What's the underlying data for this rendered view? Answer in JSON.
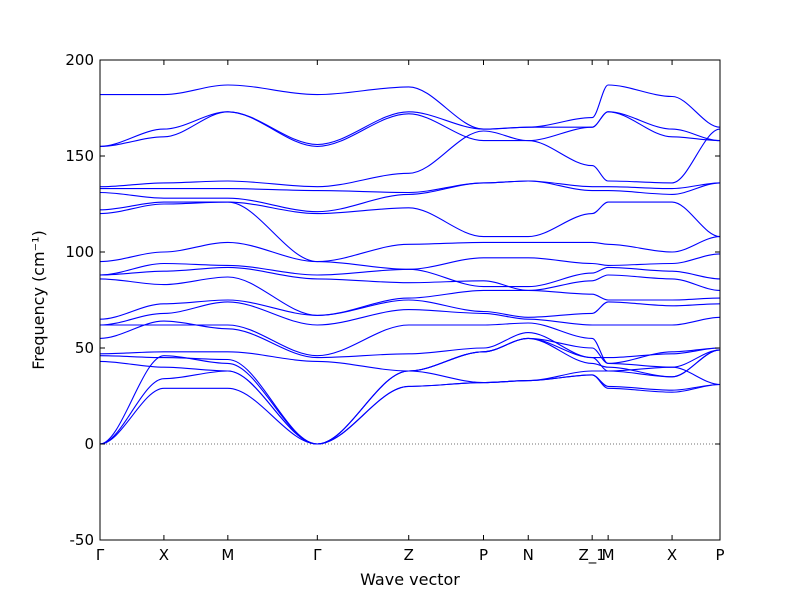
{
  "chart_data": {
    "type": "line",
    "xlabel": "Wave vector",
    "ylabel": "Frequency (cm⁻¹)",
    "ylim": [
      -50,
      200
    ],
    "yticks": [
      -50,
      0,
      50,
      100,
      150,
      200
    ],
    "colors": {
      "bands": "#0000ff",
      "zero_line": "#444444"
    },
    "zero_line": {
      "y": 0,
      "style": "dotted"
    },
    "path_points": [
      {
        "label": "Γ",
        "x": 0.0
      },
      {
        "label": "X",
        "x": 1.0
      },
      {
        "label": "M",
        "x": 2.0
      },
      {
        "label": "Γ",
        "x": 3.4
      },
      {
        "label": "Z",
        "x": 4.83
      },
      {
        "label": "P",
        "x": 6.0
      },
      {
        "label": "N",
        "x": 6.7
      },
      {
        "label": "Z_1",
        "x": 7.7
      },
      {
        "label": "M",
        "x": 7.95
      },
      {
        "label": "X",
        "x": 8.95
      },
      {
        "label": "P",
        "x": 9.7
      }
    ],
    "series": [
      {
        "values": [
          [
            0,
            182
          ],
          [
            1,
            182
          ],
          [
            2,
            187
          ],
          [
            3.4,
            182
          ],
          [
            4.83,
            186
          ],
          [
            6,
            164
          ],
          [
            6.7,
            165
          ],
          [
            7.7,
            170
          ],
          [
            7.95,
            187
          ],
          [
            8.95,
            181
          ],
          [
            9.7,
            165
          ]
        ]
      },
      {
        "values": [
          [
            0,
            155
          ],
          [
            1,
            164
          ],
          [
            2,
            173
          ],
          [
            3.4,
            156
          ],
          [
            4.83,
            173
          ],
          [
            6,
            164
          ],
          [
            6.7,
            165
          ],
          [
            7.7,
            165
          ],
          [
            7.95,
            173
          ],
          [
            8.95,
            164
          ],
          [
            9.7,
            158
          ]
        ]
      },
      {
        "values": [
          [
            0,
            155
          ],
          [
            1,
            160
          ],
          [
            2,
            173
          ],
          [
            3.4,
            155
          ],
          [
            4.83,
            172
          ],
          [
            6,
            158
          ],
          [
            6.7,
            158
          ],
          [
            7.7,
            165
          ],
          [
            7.95,
            173
          ],
          [
            8.95,
            160
          ],
          [
            9.7,
            158
          ]
        ]
      },
      {
        "values": [
          [
            0,
            134
          ],
          [
            1,
            136
          ],
          [
            2,
            137
          ],
          [
            3.4,
            134
          ],
          [
            4.83,
            141
          ],
          [
            6,
            163
          ],
          [
            6.7,
            158
          ],
          [
            7.7,
            145
          ],
          [
            7.95,
            137
          ],
          [
            8.95,
            136
          ],
          [
            9.7,
            164
          ]
        ]
      },
      {
        "values": [
          [
            0,
            133
          ],
          [
            1,
            133
          ],
          [
            2,
            133
          ],
          [
            3.4,
            132
          ],
          [
            4.83,
            131
          ],
          [
            6,
            136
          ],
          [
            6.7,
            137
          ],
          [
            7.7,
            134
          ],
          [
            7.95,
            134
          ],
          [
            8.95,
            133
          ],
          [
            9.7,
            136
          ]
        ]
      },
      {
        "values": [
          [
            0,
            131
          ],
          [
            1,
            128
          ],
          [
            2,
            128
          ],
          [
            3.4,
            121
          ],
          [
            4.83,
            130
          ],
          [
            6,
            136
          ],
          [
            6.7,
            137
          ],
          [
            7.7,
            132
          ],
          [
            7.95,
            132
          ],
          [
            8.95,
            130
          ],
          [
            9.7,
            136
          ]
        ]
      },
      {
        "values": [
          [
            0,
            122
          ],
          [
            1,
            126
          ],
          [
            2,
            126
          ],
          [
            3.4,
            120
          ],
          [
            4.83,
            123
          ],
          [
            6,
            108
          ],
          [
            6.7,
            108
          ],
          [
            7.7,
            120
          ],
          [
            7.95,
            126
          ],
          [
            8.95,
            126
          ],
          [
            9.7,
            108
          ]
        ]
      },
      {
        "values": [
          [
            0,
            120
          ],
          [
            1,
            125
          ],
          [
            2,
            126
          ],
          [
            3.4,
            95
          ],
          [
            4.83,
            104
          ],
          [
            6,
            105
          ],
          [
            6.7,
            105
          ],
          [
            7.7,
            105
          ],
          [
            7.95,
            104
          ],
          [
            8.95,
            100
          ],
          [
            9.7,
            108
          ]
        ]
      },
      {
        "values": [
          [
            0,
            95
          ],
          [
            1,
            100
          ],
          [
            2,
            105
          ],
          [
            3.4,
            95
          ],
          [
            4.83,
            91
          ],
          [
            6,
            97
          ],
          [
            6.7,
            97
          ],
          [
            7.7,
            94
          ],
          [
            7.95,
            93
          ],
          [
            8.95,
            94
          ],
          [
            9.7,
            99
          ]
        ]
      },
      {
        "values": [
          [
            0,
            88
          ],
          [
            1,
            94
          ],
          [
            2,
            93
          ],
          [
            3.4,
            88
          ],
          [
            4.83,
            91
          ],
          [
            6,
            82
          ],
          [
            6.7,
            82
          ],
          [
            7.7,
            89
          ],
          [
            7.95,
            92
          ],
          [
            8.95,
            90
          ],
          [
            9.7,
            86
          ]
        ]
      },
      {
        "values": [
          [
            0,
            88
          ],
          [
            1,
            90
          ],
          [
            2,
            92
          ],
          [
            3.4,
            86
          ],
          [
            4.83,
            84
          ],
          [
            6,
            85
          ],
          [
            6.7,
            80
          ],
          [
            7.7,
            85
          ],
          [
            7.95,
            88
          ],
          [
            8.95,
            86
          ],
          [
            9.7,
            80
          ]
        ]
      },
      {
        "values": [
          [
            0,
            86
          ],
          [
            1,
            83
          ],
          [
            2,
            87
          ],
          [
            3.4,
            67
          ],
          [
            4.83,
            76
          ],
          [
            6,
            80
          ],
          [
            6.7,
            80
          ],
          [
            7.7,
            78
          ],
          [
            7.95,
            75
          ],
          [
            8.95,
            75
          ],
          [
            9.7,
            76
          ]
        ]
      },
      {
        "values": [
          [
            0,
            65
          ],
          [
            1,
            73
          ],
          [
            2,
            75
          ],
          [
            3.4,
            67
          ],
          [
            4.83,
            75
          ],
          [
            6,
            69
          ],
          [
            6.7,
            66
          ],
          [
            7.7,
            68
          ],
          [
            7.95,
            74
          ],
          [
            8.95,
            72
          ],
          [
            9.7,
            73
          ]
        ]
      },
      {
        "values": [
          [
            0,
            62
          ],
          [
            1,
            68
          ],
          [
            2,
            74
          ],
          [
            3.4,
            62
          ],
          [
            4.83,
            70
          ],
          [
            6,
            68
          ],
          [
            6.7,
            65
          ],
          [
            7.7,
            62
          ],
          [
            7.95,
            62
          ],
          [
            8.95,
            62
          ],
          [
            9.7,
            66
          ]
        ]
      },
      {
        "values": [
          [
            0,
            62
          ],
          [
            1,
            62
          ],
          [
            2,
            62
          ],
          [
            3.4,
            46
          ],
          [
            4.83,
            62
          ],
          [
            6,
            62
          ],
          [
            6.7,
            63
          ],
          [
            7.7,
            55
          ],
          [
            7.95,
            42
          ],
          [
            8.95,
            48
          ],
          [
            9.7,
            50
          ]
        ]
      },
      {
        "values": [
          [
            0,
            55
          ],
          [
            1,
            64
          ],
          [
            2,
            60
          ],
          [
            3.4,
            45
          ],
          [
            4.83,
            47
          ],
          [
            6,
            50
          ],
          [
            6.7,
            58
          ],
          [
            7.7,
            45
          ],
          [
            7.95,
            45
          ],
          [
            8.95,
            47
          ],
          [
            9.7,
            50
          ]
        ]
      },
      {
        "values": [
          [
            0,
            47
          ],
          [
            1,
            48
          ],
          [
            2,
            48
          ],
          [
            3.4,
            43
          ],
          [
            4.83,
            38
          ],
          [
            6,
            32
          ],
          [
            6.7,
            33
          ],
          [
            7.7,
            38
          ],
          [
            7.95,
            38
          ],
          [
            8.95,
            40
          ],
          [
            9.7,
            49
          ]
        ]
      },
      {
        "values": [
          [
            0,
            46
          ],
          [
            1,
            45
          ],
          [
            2,
            44
          ],
          [
            3.4,
            0
          ],
          [
            4.83,
            30
          ],
          [
            6,
            32
          ],
          [
            6.7,
            33
          ],
          [
            7.7,
            36
          ],
          [
            7.95,
            30
          ],
          [
            8.95,
            28
          ],
          [
            9.7,
            31
          ]
        ]
      },
      {
        "values": [
          [
            0,
            43
          ],
          [
            1,
            40
          ],
          [
            2,
            38
          ],
          [
            3.4,
            0
          ],
          [
            4.83,
            38
          ],
          [
            6,
            48
          ],
          [
            6.7,
            55
          ],
          [
            7.7,
            42
          ],
          [
            7.95,
            40
          ],
          [
            8.95,
            35
          ],
          [
            9.7,
            49
          ]
        ]
      },
      {
        "values": [
          [
            0,
            0
          ],
          [
            1,
            46
          ],
          [
            2,
            42
          ],
          [
            3.4,
            0
          ],
          [
            4.83,
            38
          ],
          [
            6,
            48
          ],
          [
            6.7,
            55
          ],
          [
            7.7,
            45
          ],
          [
            7.95,
            38
          ],
          [
            8.95,
            35
          ],
          [
            9.7,
            49
          ]
        ]
      },
      {
        "values": [
          [
            0,
            0
          ],
          [
            1,
            34
          ],
          [
            2,
            38
          ],
          [
            3.4,
            0
          ],
          [
            4.83,
            38
          ],
          [
            6,
            48
          ],
          [
            6.7,
            55
          ],
          [
            7.7,
            50
          ],
          [
            7.95,
            42
          ],
          [
            8.95,
            40
          ],
          [
            9.7,
            31
          ]
        ]
      },
      {
        "values": [
          [
            0,
            0
          ],
          [
            1,
            29
          ],
          [
            2,
            29
          ],
          [
            3.4,
            0
          ],
          [
            4.83,
            30
          ],
          [
            6,
            32
          ],
          [
            6.7,
            33
          ],
          [
            7.7,
            36
          ],
          [
            7.95,
            29
          ],
          [
            8.95,
            27
          ],
          [
            9.7,
            31
          ]
        ]
      }
    ]
  }
}
